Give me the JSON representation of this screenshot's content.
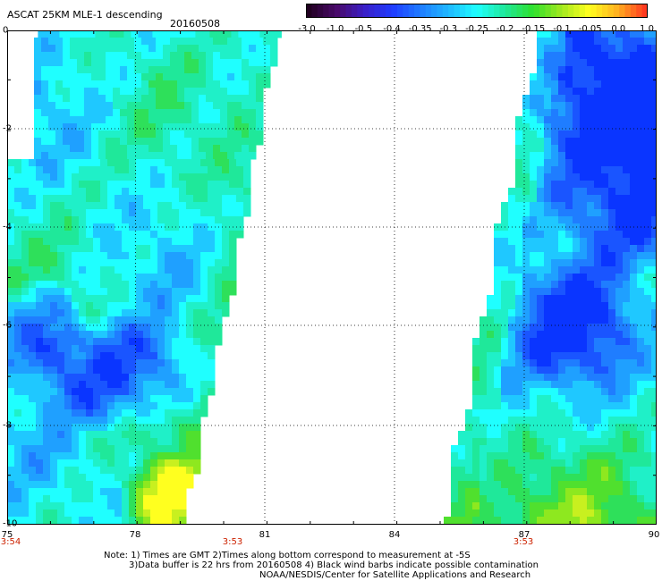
{
  "header": {
    "title": "ASCAT 25KM MLE-1 descending",
    "date": "20160508"
  },
  "colorbar": {
    "labels": [
      "-3.0",
      "-1.0",
      "-0.5",
      "-0.4",
      "-0.35",
      "-0.3",
      "-0.25",
      "-0.2",
      "-0.15",
      "-0.1",
      "-0.05",
      "0.0",
      "1.0"
    ],
    "colors": [
      "#200020",
      "#4a0a6a",
      "#3a1fc8",
      "#1f3cff",
      "#1f7dff",
      "#1fb8ff",
      "#1fffff",
      "#1fe89a",
      "#2ee02e",
      "#a0e81f",
      "#ffff1f",
      "#ffb21f",
      "#ff3a1f"
    ]
  },
  "axes": {
    "y_ticks": [
      "0",
      "-2",
      "-4",
      "-6",
      "-8",
      "-10"
    ],
    "x_ticks": [
      "75",
      "78",
      "81",
      "84",
      "87",
      "90"
    ],
    "times": [
      "3:54",
      "3:53",
      "3:53"
    ]
  },
  "map": {
    "lon_range": [
      75,
      90
    ],
    "lat_range": [
      0,
      -10
    ],
    "grid": true,
    "left_swath_times": "3:54 / 3:53",
    "right_swath_time": "3:53"
  },
  "notes": {
    "line1": "Note: 1) Times are GMT 2)Times along bottom correspond to measurement at -5S",
    "line2": "3)Data buffer is 22 hrs from 20160508 4) Black wind barbs indicate possible contamination",
    "line3": "NOAA/NESDIS/Center for Satellite Applications and Research"
  }
}
